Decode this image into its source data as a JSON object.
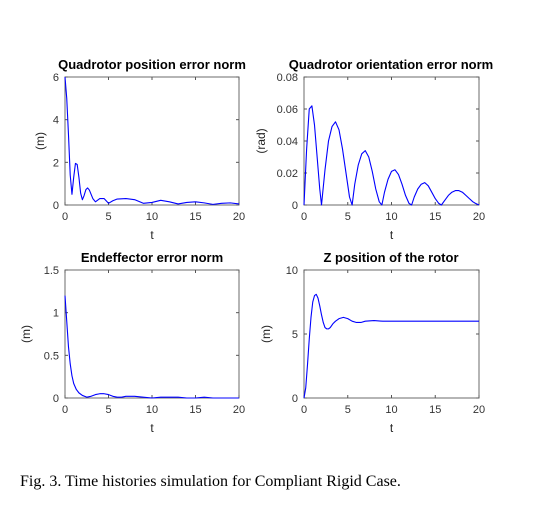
{
  "caption": "Fig. 3.   Time histories simulation for Compliant Rigid Case.",
  "chart_data": [
    {
      "type": "line",
      "title": "Quadrotor position error norm",
      "xlabel": "t",
      "ylabel": "(m)",
      "xlim": [
        0,
        20
      ],
      "ylim": [
        0,
        6
      ],
      "xticks": [
        0,
        5,
        10,
        15,
        20
      ],
      "yticks": [
        0,
        2,
        4,
        6
      ],
      "tick_labels_x": [
        "0",
        "5",
        "10",
        "15",
        "20"
      ],
      "tick_labels_y": [
        "0",
        "2",
        "4",
        "6"
      ],
      "color": "#0000ff",
      "x": [
        0,
        0.2,
        0.4,
        0.6,
        0.8,
        1.0,
        1.2,
        1.4,
        1.6,
        1.8,
        2.0,
        2.2,
        2.4,
        2.6,
        2.8,
        3.0,
        3.2,
        3.5,
        4.0,
        4.5,
        5.0,
        5.5,
        6.0,
        7.0,
        8.0,
        9.0,
        10.0,
        11.0,
        12.0,
        13.0,
        14.0,
        15.0,
        16.0,
        17.0,
        18.0,
        19.0,
        20.0
      ],
      "values": [
        6.0,
        5.0,
        3.3,
        1.4,
        0.5,
        1.3,
        1.95,
        1.9,
        1.3,
        0.55,
        0.25,
        0.45,
        0.72,
        0.8,
        0.7,
        0.5,
        0.3,
        0.15,
        0.3,
        0.3,
        0.08,
        0.2,
        0.28,
        0.3,
        0.25,
        0.08,
        0.12,
        0.22,
        0.15,
        0.05,
        0.12,
        0.15,
        0.1,
        0.03,
        0.08,
        0.1,
        0.05
      ]
    },
    {
      "type": "line",
      "title": "Quadrotor orientation error norm",
      "xlabel": "t",
      "ylabel": "(rad)",
      "xlim": [
        0,
        20
      ],
      "ylim": [
        0,
        0.08
      ],
      "xticks": [
        0,
        5,
        10,
        15,
        20
      ],
      "yticks": [
        0,
        0.02,
        0.04,
        0.06,
        0.08
      ],
      "tick_labels_x": [
        "0",
        "5",
        "10",
        "15",
        "20"
      ],
      "tick_labels_y": [
        "0",
        "0.02",
        "0.04",
        "0.06",
        "0.08"
      ],
      "color": "#0000ff",
      "x": [
        0,
        0.3,
        0.6,
        0.9,
        1.2,
        1.5,
        1.8,
        2.0,
        2.4,
        2.8,
        3.2,
        3.6,
        4.0,
        4.4,
        4.8,
        5.2,
        5.5,
        5.8,
        6.2,
        6.6,
        7.0,
        7.4,
        7.8,
        8.2,
        8.6,
        8.9,
        9.2,
        9.6,
        10.0,
        10.4,
        10.8,
        11.2,
        11.6,
        12.0,
        12.3,
        12.6,
        13.0,
        13.4,
        13.8,
        14.2,
        14.6,
        15.0,
        15.4,
        15.7,
        16.1,
        16.5,
        16.9,
        17.3,
        17.7,
        18.1,
        18.5,
        18.9,
        19.3,
        19.6,
        20.0
      ],
      "values": [
        0.0,
        0.035,
        0.06,
        0.062,
        0.05,
        0.03,
        0.01,
        0.0,
        0.022,
        0.04,
        0.049,
        0.052,
        0.047,
        0.035,
        0.02,
        0.005,
        0.0,
        0.013,
        0.025,
        0.032,
        0.034,
        0.03,
        0.021,
        0.01,
        0.002,
        0.0,
        0.008,
        0.016,
        0.021,
        0.022,
        0.019,
        0.013,
        0.006,
        0.001,
        0.0,
        0.005,
        0.01,
        0.013,
        0.014,
        0.012,
        0.008,
        0.004,
        0.001,
        0.0,
        0.003,
        0.006,
        0.008,
        0.009,
        0.009,
        0.008,
        0.006,
        0.004,
        0.002,
        0.001,
        0.0
      ]
    },
    {
      "type": "line",
      "title": "Endeffector error norm",
      "xlabel": "t",
      "ylabel": "(m)",
      "xlim": [
        0,
        20
      ],
      "ylim": [
        0,
        1.5
      ],
      "xticks": [
        0,
        5,
        10,
        15,
        20
      ],
      "yticks": [
        0,
        0.5,
        1,
        1.5
      ],
      "tick_labels_x": [
        "0",
        "5",
        "10",
        "15",
        "20"
      ],
      "tick_labels_y": [
        "0",
        "0.5",
        "1",
        "1.5"
      ],
      "color": "#0000ff",
      "x": [
        0,
        0.2,
        0.4,
        0.6,
        0.8,
        1.0,
        1.3,
        1.6,
        2.0,
        2.5,
        3.0,
        3.5,
        4.0,
        4.5,
        5.0,
        5.5,
        6.0,
        6.5,
        7.0,
        8.0,
        9.0,
        10.0,
        11.0,
        12.0,
        13.0,
        14.0,
        15.0,
        16.0,
        17.0,
        18.0,
        19.0,
        20.0
      ],
      "values": [
        1.2,
        0.9,
        0.6,
        0.4,
        0.26,
        0.17,
        0.1,
        0.06,
        0.03,
        0.01,
        0.02,
        0.04,
        0.05,
        0.05,
        0.04,
        0.02,
        0.01,
        0.01,
        0.02,
        0.02,
        0.01,
        0.0,
        0.01,
        0.01,
        0.01,
        0.0,
        0.0,
        0.01,
        0.0,
        0.0,
        0.0,
        0.0
      ]
    },
    {
      "type": "line",
      "title": "Z position of the rotor",
      "xlabel": "t",
      "ylabel": "(m)",
      "xlim": [
        0,
        20
      ],
      "ylim": [
        0,
        10
      ],
      "xticks": [
        0,
        5,
        10,
        15,
        20
      ],
      "yticks": [
        0,
        5,
        10
      ],
      "tick_labels_x": [
        "0",
        "5",
        "10",
        "15",
        "20"
      ],
      "tick_labels_y": [
        "0",
        "5",
        "10"
      ],
      "color": "#0000ff",
      "x": [
        0,
        0.2,
        0.4,
        0.6,
        0.8,
        1.0,
        1.2,
        1.4,
        1.6,
        1.8,
        2.0,
        2.2,
        2.4,
        2.6,
        2.8,
        3.0,
        3.3,
        3.6,
        4.0,
        4.5,
        5.0,
        5.5,
        6.0,
        6.5,
        7.0,
        8.0,
        9.0,
        10.0,
        12.0,
        14.0,
        16.0,
        18.0,
        20.0
      ],
      "values": [
        0.0,
        0.8,
        2.6,
        4.6,
        6.3,
        7.5,
        8.0,
        8.1,
        7.8,
        7.2,
        6.5,
        5.9,
        5.5,
        5.4,
        5.4,
        5.5,
        5.8,
        6.0,
        6.2,
        6.3,
        6.2,
        6.0,
        5.9,
        5.9,
        6.0,
        6.05,
        6.0,
        6.0,
        6.0,
        6.0,
        6.0,
        6.0,
        6.0
      ]
    }
  ]
}
